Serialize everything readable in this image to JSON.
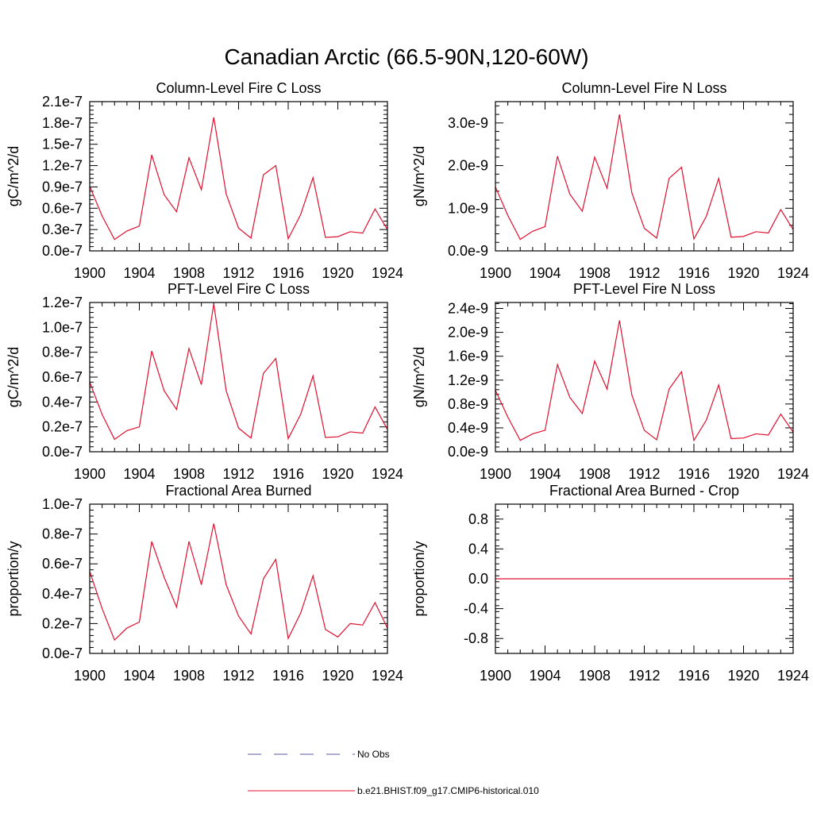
{
  "figure": {
    "title": "Canadian Arctic (66.5-90N,120-60W)"
  },
  "legend": {
    "entries": [
      {
        "label": "No Obs",
        "color": "#5a5aa0",
        "style": "dashed"
      },
      {
        "label": "b.e21.BHIST.f09_g17.CMIP6-historical.010",
        "color": "#e0102f",
        "style": "solid"
      }
    ]
  },
  "chart_data": [
    {
      "type": "line",
      "title": "Column-Level Fire C Loss",
      "ylabel": "gC/m^2/d",
      "xlim": [
        1900,
        1924
      ],
      "ylim": [
        0,
        2.1e-07
      ],
      "xticks": [
        1900,
        1904,
        1908,
        1912,
        1916,
        1920,
        1924
      ],
      "xtick_labels": [
        "1900",
        "1904",
        "1908",
        "1912",
        "1916",
        "1920",
        "1924"
      ],
      "yticks": [
        0,
        3e-08,
        6e-08,
        9e-08,
        1.2e-07,
        1.5e-07,
        1.8e-07,
        2.1e-07
      ],
      "ytick_labels": [
        "0.0e-7",
        "0.3e-7",
        "0.6e-7",
        "0.9e-7",
        "1.2e-7",
        "1.5e-7",
        "1.8e-7",
        "2.1e-7"
      ],
      "x": [
        1900,
        1901,
        1902,
        1903,
        1904,
        1905,
        1906,
        1907,
        1908,
        1909,
        1910,
        1911,
        1912,
        1913,
        1914,
        1915,
        1916,
        1917,
        1918,
        1919,
        1920,
        1921,
        1922,
        1923,
        1924
      ],
      "series": [
        {
          "name": "b.e21.BHIST.f09_g17.CMIP6-historical.010",
          "color": "#e0102f",
          "values": [
            9.1e-08,
            4.9e-08,
            1.6e-08,
            2.8e-08,
            3.5e-08,
            1.35e-07,
            7.9e-08,
            5.5e-08,
            1.31e-07,
            8.6e-08,
            1.88e-07,
            8e-08,
            3.2e-08,
            1.8e-08,
            1.07e-07,
            1.2e-07,
            1.7e-08,
            5.1e-08,
            1.03e-07,
            1.9e-08,
            2e-08,
            2.7e-08,
            2.5e-08,
            5.9e-08,
            3e-08
          ]
        }
      ]
    },
    {
      "type": "line",
      "title": "Column-Level Fire N Loss",
      "ylabel": "gN/m^2/d",
      "xlim": [
        1900,
        1924
      ],
      "ylim": [
        0,
        3.5e-09
      ],
      "xticks": [
        1900,
        1904,
        1908,
        1912,
        1916,
        1920,
        1924
      ],
      "xtick_labels": [
        "1900",
        "1904",
        "1908",
        "1912",
        "1916",
        "1920",
        "1924"
      ],
      "yticks": [
        0,
        1e-09,
        2e-09,
        3e-09
      ],
      "ytick_labels": [
        "0.0e-9",
        "1.0e-9",
        "2.0e-9",
        "3.0e-9"
      ],
      "x": [
        1900,
        1901,
        1902,
        1903,
        1904,
        1905,
        1906,
        1907,
        1908,
        1909,
        1910,
        1911,
        1912,
        1913,
        1914,
        1915,
        1916,
        1917,
        1918,
        1919,
        1920,
        1921,
        1922,
        1923,
        1924
      ],
      "series": [
        {
          "name": "b.e21.BHIST.f09_g17.CMIP6-historical.010",
          "color": "#e0102f",
          "values": [
            1.5e-09,
            8.3e-10,
            2.7e-10,
            4.6e-10,
            5.7e-10,
            2.22e-09,
            1.33e-09,
            9.3e-10,
            2.2e-09,
            1.47e-09,
            3.2e-09,
            1.36e-09,
            5.3e-10,
            3e-10,
            1.7e-09,
            1.96e-09,
            2.8e-10,
            8.1e-10,
            1.7e-09,
            3.2e-10,
            3.4e-10,
            4.5e-10,
            4.2e-10,
            9.7e-10,
            5e-10
          ]
        }
      ]
    },
    {
      "type": "line",
      "title": "PFT-Level Fire C Loss",
      "ylabel": "gC/m^2/d",
      "xlim": [
        1900,
        1924
      ],
      "ylim": [
        0,
        1.2e-07
      ],
      "xticks": [
        1900,
        1904,
        1908,
        1912,
        1916,
        1920,
        1924
      ],
      "xtick_labels": [
        "1900",
        "1904",
        "1908",
        "1912",
        "1916",
        "1920",
        "1924"
      ],
      "yticks": [
        0,
        2e-08,
        4e-08,
        6e-08,
        8e-08,
        1e-07,
        1.2e-07
      ],
      "ytick_labels": [
        "0.0e-7",
        "0.2e-7",
        "0.4e-7",
        "0.6e-7",
        "0.8e-7",
        "1.0e-7",
        "1.2e-7"
      ],
      "x": [
        1900,
        1901,
        1902,
        1903,
        1904,
        1905,
        1906,
        1907,
        1908,
        1909,
        1910,
        1911,
        1912,
        1913,
        1914,
        1915,
        1916,
        1917,
        1918,
        1919,
        1920,
        1921,
        1922,
        1923,
        1924
      ],
      "series": [
        {
          "name": "b.e21.BHIST.f09_g17.CMIP6-historical.010",
          "color": "#e0102f",
          "values": [
            5.6e-08,
            3e-08,
            1e-08,
            1.7e-08,
            2e-08,
            8.1e-08,
            4.9e-08,
            3.4e-08,
            8.3e-08,
            5.4e-08,
            1.19e-07,
            4.9e-08,
            1.9e-08,
            1.1e-08,
            6.3e-08,
            7.5e-08,
            1.05e-08,
            3e-08,
            6.1e-08,
            1.15e-08,
            1.2e-08,
            1.6e-08,
            1.5e-08,
            3.6e-08,
            1.8e-08
          ]
        }
      ]
    },
    {
      "type": "line",
      "title": "PFT-Level Fire N Loss",
      "ylabel": "gN/m^2/d",
      "xlim": [
        1900,
        1924
      ],
      "ylim": [
        0,
        2.5e-09
      ],
      "xticks": [
        1900,
        1904,
        1908,
        1912,
        1916,
        1920,
        1924
      ],
      "xtick_labels": [
        "1900",
        "1904",
        "1908",
        "1912",
        "1916",
        "1920",
        "1924"
      ],
      "yticks": [
        0,
        4e-10,
        8e-10,
        1.2e-09,
        1.6e-09,
        2e-09,
        2.4e-09
      ],
      "ytick_labels": [
        "0.0e-9",
        "0.4e-9",
        "0.8e-9",
        "1.2e-9",
        "1.6e-9",
        "2.0e-9",
        "2.4e-9"
      ],
      "x": [
        1900,
        1901,
        1902,
        1903,
        1904,
        1905,
        1906,
        1907,
        1908,
        1909,
        1910,
        1911,
        1912,
        1913,
        1914,
        1915,
        1916,
        1917,
        1918,
        1919,
        1920,
        1921,
        1922,
        1923,
        1924
      ],
      "series": [
        {
          "name": "b.e21.BHIST.f09_g17.CMIP6-historical.010",
          "color": "#e0102f",
          "values": [
            1.03e-09,
            5.8e-10,
            1.9e-10,
            3e-10,
            3.6e-10,
            1.46e-09,
            9.1e-10,
            6.4e-10,
            1.52e-09,
            1.05e-09,
            2.2e-09,
            9.5e-10,
            3.6e-10,
            2e-10,
            1.05e-09,
            1.34e-09,
            1.9e-10,
            5.3e-10,
            1.12e-09,
            2.2e-10,
            2.3e-10,
            3e-10,
            2.8e-10,
            6.3e-10,
            3.3e-10
          ]
        }
      ]
    },
    {
      "type": "line",
      "title": "Fractional Area Burned",
      "ylabel": "proportion/y",
      "xlim": [
        1900,
        1924
      ],
      "ylim": [
        0,
        1e-07
      ],
      "xticks": [
        1900,
        1904,
        1908,
        1912,
        1916,
        1920,
        1924
      ],
      "xtick_labels": [
        "1900",
        "1904",
        "1908",
        "1912",
        "1916",
        "1920",
        "1924"
      ],
      "yticks": [
        0,
        2e-08,
        4e-08,
        6e-08,
        8e-08,
        1e-07
      ],
      "ytick_labels": [
        "0.0e-7",
        "0.2e-7",
        "0.4e-7",
        "0.6e-7",
        "0.8e-7",
        "1.0e-7"
      ],
      "x": [
        1900,
        1901,
        1902,
        1903,
        1904,
        1905,
        1906,
        1907,
        1908,
        1909,
        1910,
        1911,
        1912,
        1913,
        1914,
        1915,
        1916,
        1917,
        1918,
        1919,
        1920,
        1921,
        1922,
        1923,
        1924
      ],
      "series": [
        {
          "name": "b.e21.BHIST.f09_g17.CMIP6-historical.010",
          "color": "#e0102f",
          "values": [
            5.5e-08,
            3e-08,
            9e-09,
            1.7e-08,
            2.1e-08,
            7.5e-08,
            5.1e-08,
            3.1e-08,
            7.5e-08,
            4.6e-08,
            8.7e-08,
            4.6e-08,
            2.5e-08,
            1.3e-08,
            5e-08,
            6.3e-08,
            1e-08,
            2.7e-08,
            5.2e-08,
            1.6e-08,
            1.1e-08,
            2e-08,
            1.9e-08,
            3.4e-08,
            1.7e-08
          ]
        }
      ]
    },
    {
      "type": "line",
      "title": "Fractional Area Burned - Crop",
      "ylabel": "proportion/y",
      "xlim": [
        1900,
        1924
      ],
      "ylim": [
        -1,
        1
      ],
      "xticks": [
        1900,
        1904,
        1908,
        1912,
        1916,
        1920,
        1924
      ],
      "xtick_labels": [
        "1900",
        "1904",
        "1908",
        "1912",
        "1916",
        "1920",
        "1924"
      ],
      "yticks": [
        -0.8,
        -0.4,
        0,
        0.4,
        0.8
      ],
      "ytick_labels": [
        "-0.8",
        "-0.4",
        "0.0",
        "0.4",
        "0.8"
      ],
      "x": [
        1900,
        1901,
        1902,
        1903,
        1904,
        1905,
        1906,
        1907,
        1908,
        1909,
        1910,
        1911,
        1912,
        1913,
        1914,
        1915,
        1916,
        1917,
        1918,
        1919,
        1920,
        1921,
        1922,
        1923,
        1924
      ],
      "series": [
        {
          "name": "b.e21.BHIST.f09_g17.CMIP6-historical.010",
          "color": "#e0102f",
          "values": [
            0,
            0,
            0,
            0,
            0,
            0,
            0,
            0,
            0,
            0,
            0,
            0,
            0,
            0,
            0,
            0,
            0,
            0,
            0,
            0,
            0,
            0,
            0,
            0,
            0
          ]
        }
      ]
    }
  ]
}
